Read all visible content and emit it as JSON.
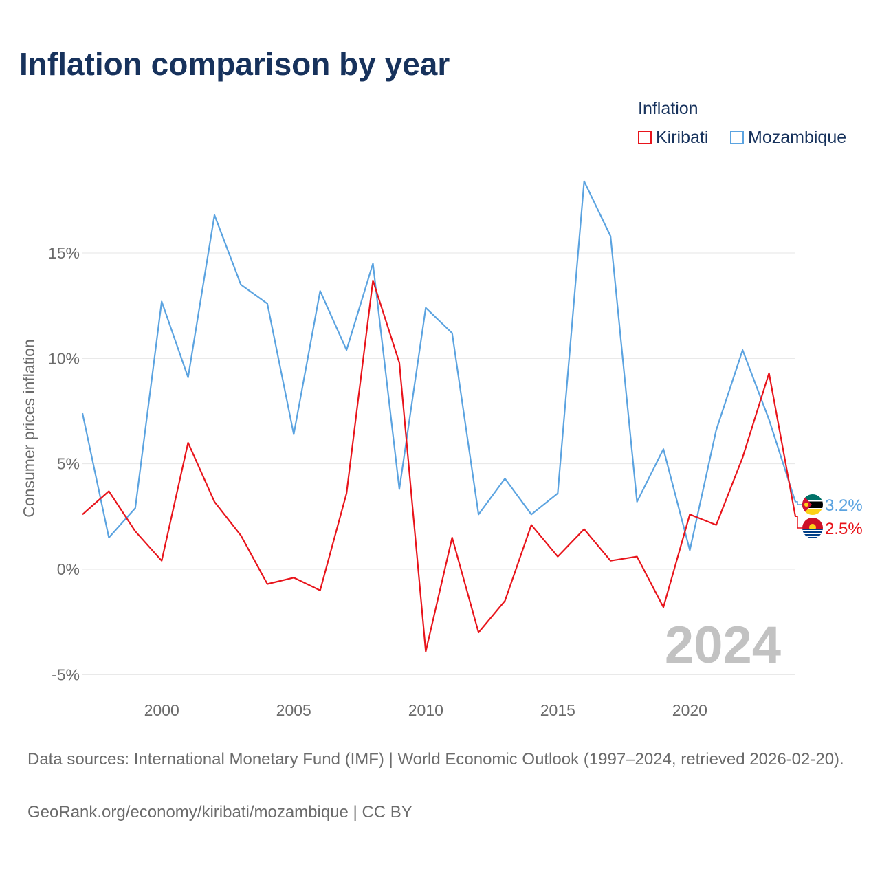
{
  "title": "Inflation comparison by year",
  "legend": {
    "title": "Inflation",
    "items": [
      {
        "name": "Kiribati",
        "color": "#e8141b"
      },
      {
        "name": "Mozambique",
        "color": "#5ba3e0"
      }
    ]
  },
  "chart_data": {
    "type": "line",
    "ylabel": "Consumer prices inflation",
    "xlabel": "",
    "xlim": [
      1997,
      2024
    ],
    "ylim": [
      -6,
      19.5
    ],
    "x_ticks": [
      2000,
      2005,
      2010,
      2015,
      2020
    ],
    "y_ticks": [
      -5,
      0,
      5,
      10,
      15
    ],
    "y_tick_labels": [
      "-5%",
      "0%",
      "5%",
      "10%",
      "15%"
    ],
    "grid": true,
    "watermark_year": "2024",
    "x": [
      1997,
      1998,
      1999,
      2000,
      2001,
      2002,
      2003,
      2004,
      2005,
      2006,
      2007,
      2008,
      2009,
      2010,
      2011,
      2012,
      2013,
      2014,
      2015,
      2016,
      2017,
      2018,
      2019,
      2020,
      2021,
      2022,
      2023,
      2024
    ],
    "series": [
      {
        "name": "Kiribati",
        "color": "#e8141b",
        "end_label": "2.5%",
        "flag": "kiribati-flag-icon",
        "values": [
          2.6,
          3.7,
          1.8,
          0.4,
          6.0,
          3.2,
          1.6,
          -0.7,
          -0.4,
          -1.0,
          3.6,
          13.7,
          9.8,
          -3.9,
          1.5,
          -3.0,
          -1.5,
          2.1,
          0.6,
          1.9,
          0.4,
          0.6,
          -1.8,
          2.6,
          2.1,
          5.3,
          9.3,
          2.5
        ]
      },
      {
        "name": "Mozambique",
        "color": "#5ba3e0",
        "end_label": "3.2%",
        "flag": "mozambique-flag-icon",
        "values": [
          7.4,
          1.5,
          2.9,
          12.7,
          9.1,
          16.8,
          13.5,
          12.6,
          6.4,
          13.2,
          10.4,
          14.5,
          3.8,
          12.4,
          11.2,
          2.6,
          4.3,
          2.6,
          3.6,
          18.4,
          15.8,
          3.2,
          5.7,
          0.9,
          6.6,
          10.4,
          7.1,
          3.2
        ]
      }
    ]
  },
  "footer": {
    "sources": "Data sources: International Monetary Fund (IMF) | World Economic Outlook (1997–2024, retrieved 2026-02-20).",
    "attribution": "GeoRank.org/economy/kiribati/mozambique | CC BY"
  }
}
